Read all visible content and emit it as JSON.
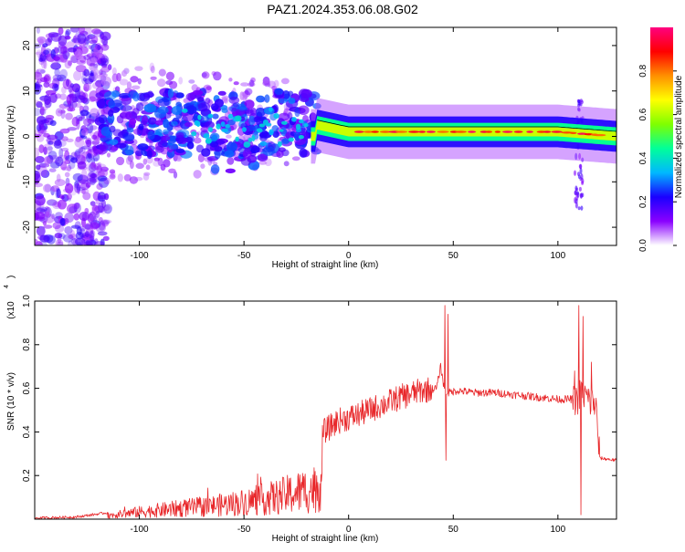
{
  "title": "PAZ1.2024.353.06.08.G02",
  "colors": {
    "trace": "#e8272a",
    "axis": "#000000",
    "colormap": [
      "#ffffff",
      "#8a00ff",
      "#1a00ff",
      "#00b8ff",
      "#00ff9a",
      "#7fff00",
      "#ffff00",
      "#ff9000",
      "#ff0000",
      "#ff0080"
    ]
  },
  "chart_data": [
    {
      "type": "heatmap",
      "xlabel": "Height of straight line (km)",
      "ylabel": "Frequency (Hz)",
      "xlim": [
        -150,
        128
      ],
      "ylim": [
        -24,
        24
      ],
      "xticks": [
        -100,
        -50,
        0,
        50,
        100
      ],
      "xticklabels": [
        "-100",
        "-50",
        "0",
        "50",
        "100"
      ],
      "yticks": [
        -20,
        -10,
        0,
        10,
        20
      ],
      "yticklabels": [
        "-20",
        "-10",
        "0",
        "10",
        "20"
      ],
      "colorbar": {
        "label": "Normalized spectral amplitude",
        "range": [
          0,
          1
        ],
        "ticks": [
          0.0,
          0.2,
          0.4,
          0.6,
          0.8
        ],
        "ticklabels": [
          "0.0",
          "0.2",
          "0.4",
          "0.6",
          "0.8"
        ]
      },
      "description_ridge": [
        {
          "x": -15,
          "y": 2.5
        },
        {
          "x": 0,
          "y": 1.0
        },
        {
          "x": 50,
          "y": 1.0
        },
        {
          "x": 100,
          "y": 1.0
        },
        {
          "x": 128,
          "y": 0.0
        }
      ],
      "grid": false
    },
    {
      "type": "line",
      "xlabel": "Height of straight line (km)",
      "ylabel": "SNR (10 * v/v)",
      "y_multiplier": "(x10",
      "y_multiplier_exp": "4",
      "xlim": [
        -150,
        128
      ],
      "ylim": [
        0,
        1.0
      ],
      "xticks": [
        -100,
        -50,
        0,
        50,
        100
      ],
      "xticklabels": [
        "-100",
        "-50",
        "0",
        "50",
        "100"
      ],
      "yticks": [
        0.2,
        0.4,
        0.6,
        0.8,
        1.0
      ],
      "yticklabels": [
        "0.2",
        "0.4",
        "0.6",
        "0.8",
        "1.0"
      ],
      "envelope_x": [
        -150,
        -130,
        -115,
        -100,
        -80,
        -65,
        -50,
        -35,
        -25,
        -15,
        -12,
        -5,
        5,
        15,
        25,
        35,
        42,
        44,
        46,
        48,
        52,
        60,
        70,
        80,
        90,
        100,
        105,
        108,
        110,
        112,
        115,
        118,
        120,
        128
      ],
      "envelope_y": [
        0.005,
        0.01,
        0.03,
        0.06,
        0.09,
        0.11,
        0.14,
        0.18,
        0.22,
        0.26,
        0.4,
        0.45,
        0.48,
        0.52,
        0.56,
        0.59,
        0.6,
        0.7,
        0.58,
        0.58,
        0.59,
        0.58,
        0.58,
        0.57,
        0.56,
        0.55,
        0.55,
        0.55,
        0.56,
        0.58,
        0.54,
        0.53,
        0.28,
        0.27
      ],
      "spikes": [
        {
          "x": 46,
          "y": 0.98
        },
        {
          "x": 47.5,
          "y": 0.94
        },
        {
          "x": 46.5,
          "y": 0.27
        },
        {
          "x": 110,
          "y": 0.98
        },
        {
          "x": 112,
          "y": 0.93
        },
        {
          "x": 111,
          "y": 0.02
        },
        {
          "x": 116,
          "y": 0.72
        },
        {
          "x": 108,
          "y": 0.68
        }
      ],
      "grid": false
    }
  ]
}
